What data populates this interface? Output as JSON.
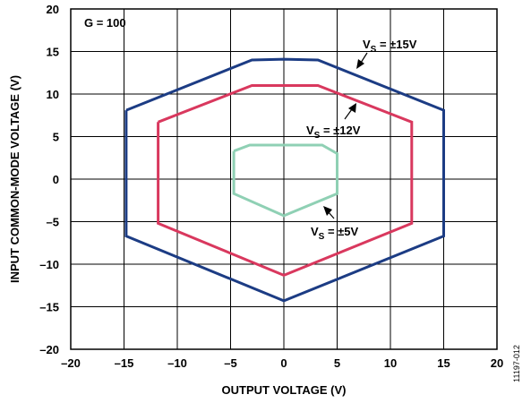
{
  "chart_data": {
    "type": "line",
    "title": "",
    "xlabel": "OUTPUT VOLTAGE (V)",
    "ylabel": "INPUT COMMON-MODE VOLTAGE (V)",
    "xlim": [
      -20,
      20
    ],
    "ylim": [
      -20,
      20
    ],
    "x_ticks": [
      -20,
      -15,
      -10,
      -5,
      0,
      5,
      10,
      15,
      20
    ],
    "y_ticks": [
      -20,
      -15,
      -10,
      -5,
      0,
      5,
      10,
      15,
      20
    ],
    "x_tick_labels": [
      "–20",
      "–15",
      "–10",
      "–5",
      "0",
      "5",
      "10",
      "15",
      "20"
    ],
    "y_tick_labels": [
      "–20",
      "–15",
      "–10",
      "–5",
      "0",
      "5",
      "10",
      "15",
      "20"
    ],
    "grid": true,
    "gain_label": "G = 100",
    "figure_id": "11197-012",
    "series": [
      {
        "name": "VS = ±15V",
        "label_main": "V",
        "label_sub": "S",
        "label_rest": " = ±15V",
        "color": "#1c3c84",
        "points": [
          [
            -14.8,
            8.1
          ],
          [
            -3,
            14.0
          ],
          [
            0,
            14.1
          ],
          [
            3.2,
            14.0
          ],
          [
            15,
            8.1
          ],
          [
            15,
            -6.7
          ],
          [
            0,
            -14.3
          ],
          [
            -14.8,
            -6.7
          ],
          [
            -14.8,
            8.1
          ]
        ]
      },
      {
        "name": "VS = ±12V",
        "label_main": "V",
        "label_sub": "S",
        "label_rest": " = ±12V",
        "color": "#d9385e",
        "points": [
          [
            -11.8,
            6.7
          ],
          [
            -3,
            11.0
          ],
          [
            3.2,
            11.0
          ],
          [
            12,
            6.7
          ],
          [
            12,
            -5.2
          ],
          [
            0,
            -11.3
          ],
          [
            -11.8,
            -5.2
          ],
          [
            -11.8,
            6.7
          ]
        ]
      },
      {
        "name": "VS = ±5V",
        "label_main": "V",
        "label_sub": "S",
        "label_rest": " = ±5V",
        "color": "#8fd0b4",
        "points": [
          [
            -4.7,
            3.3
          ],
          [
            -3.2,
            4.0
          ],
          [
            3.6,
            4.0
          ],
          [
            5,
            3.0
          ],
          [
            5,
            -1.7
          ],
          [
            0,
            -4.3
          ],
          [
            -4.7,
            -1.7
          ],
          [
            -4.7,
            3.3
          ]
        ]
      }
    ]
  }
}
